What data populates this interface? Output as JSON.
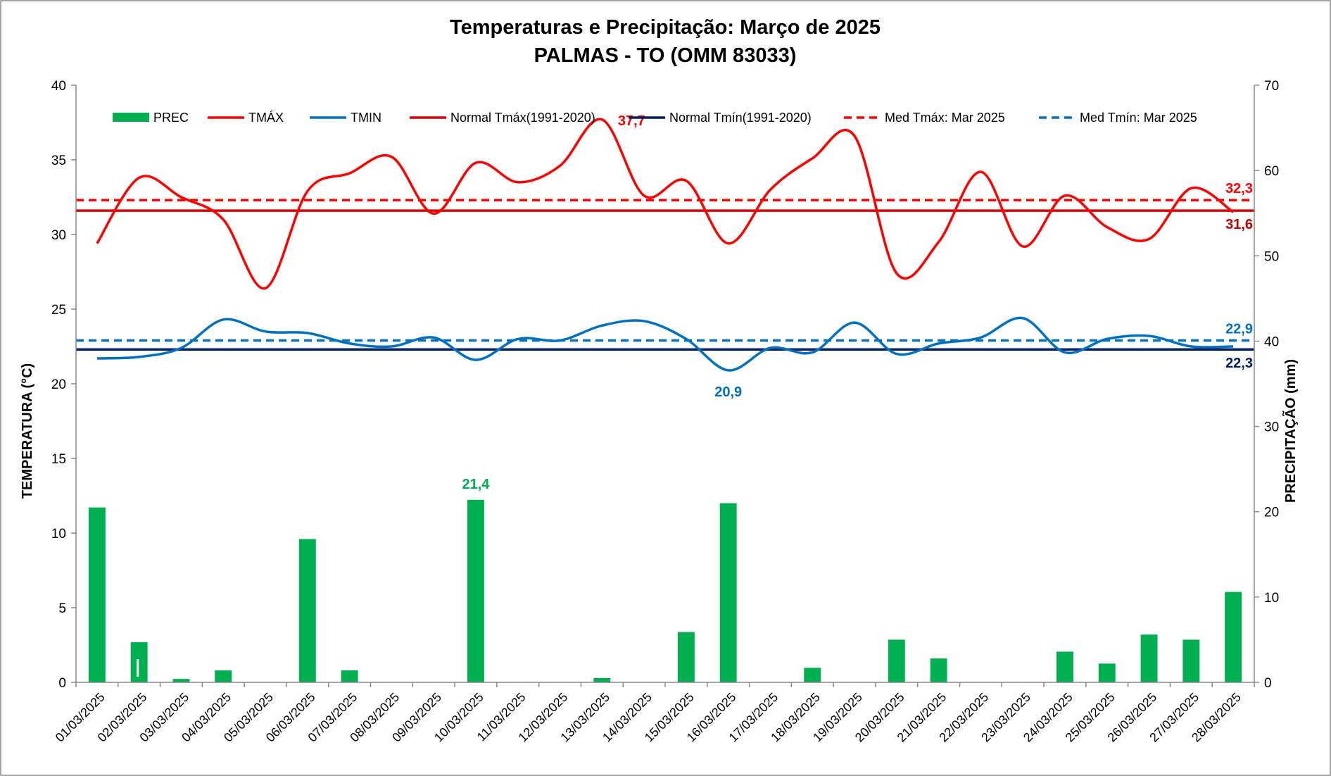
{
  "chart_data": {
    "type": "bar+line",
    "title": "Temperaturas e Precipitação: Março de 2025",
    "subtitle": "PALMAS - TO (OMM 83033)",
    "ylabel_left": "TEMPERATURA  (°C)",
    "ylabel_right": "PRECIPITAÇÃO  (mm)",
    "ylim_left": [
      0,
      40
    ],
    "ylim_right": [
      0,
      70
    ],
    "yticks_left": [
      "0",
      "5",
      "10",
      "15",
      "20",
      "25",
      "30",
      "35",
      "40"
    ],
    "yticks_right": [
      "0",
      "10",
      "20",
      "30",
      "40",
      "50",
      "60",
      "70"
    ],
    "categories": [
      "01/03/2025",
      "02/03/2025",
      "03/03/2025",
      "04/03/2025",
      "05/03/2025",
      "06/03/2025",
      "07/03/2025",
      "08/03/2025",
      "09/03/2025",
      "10/03/2025",
      "11/03/2025",
      "12/03/2025",
      "13/03/2025",
      "14/03/2025",
      "15/03/2025",
      "16/03/2025",
      "17/03/2025",
      "18/03/2025",
      "19/03/2025",
      "20/03/2025",
      "21/03/2025",
      "22/03/2025",
      "23/03/2025",
      "24/03/2025",
      "25/03/2025",
      "26/03/2025",
      "27/03/2025",
      "28/03/2025"
    ],
    "series": [
      {
        "name": "PREC",
        "type": "bar",
        "axis": "right",
        "color": "#00b050",
        "values": [
          20.5,
          4.7,
          0.4,
          1.4,
          0,
          16.8,
          1.4,
          0,
          0,
          21.4,
          0,
          0,
          0.5,
          0,
          5.9,
          21.0,
          0,
          1.7,
          0,
          5.0,
          2.8,
          0,
          0,
          3.6,
          2.2,
          5.6,
          5.0,
          10.6
        ]
      },
      {
        "name": "TMÁX",
        "type": "line",
        "axis": "left",
        "color": "#ff0000",
        "values": [
          29.4,
          33.8,
          32.5,
          31.0,
          26.4,
          32.9,
          34.1,
          35.2,
          31.4,
          34.8,
          33.5,
          34.6,
          37.7,
          32.6,
          33.6,
          29.4,
          33.0,
          35.1,
          36.6,
          27.4,
          29.5,
          34.2,
          29.2,
          32.6,
          30.5,
          29.7,
          33.1,
          31.5
        ]
      },
      {
        "name": "TMIN",
        "type": "line",
        "axis": "left",
        "color": "#0070c0",
        "values": [
          21.7,
          21.8,
          22.4,
          24.3,
          23.5,
          23.4,
          22.7,
          22.5,
          23.1,
          21.6,
          23.0,
          22.9,
          23.9,
          24.2,
          23.0,
          20.9,
          22.4,
          22.1,
          24.1,
          22.0,
          22.7,
          23.1,
          24.4,
          22.1,
          23.0,
          23.2,
          22.5,
          22.5
        ]
      },
      {
        "name": "Normal Tmáx(1991-2020)",
        "type": "hline",
        "axis": "left",
        "color": "#e00000",
        "value": 31.6
      },
      {
        "name": "Normal Tmín(1991-2020)",
        "type": "hline",
        "axis": "left",
        "color": "#002060",
        "value": 22.3
      },
      {
        "name": "Med Tmáx: Mar 2025",
        "type": "hline-dashed",
        "axis": "left",
        "color": "#ff0000",
        "value": 32.3
      },
      {
        "name": "Med Tmín: Mar 2025",
        "type": "hline-dashed",
        "axis": "left",
        "color": "#0070c0",
        "value": 22.9
      }
    ],
    "annotations": [
      {
        "text": "37,7",
        "color": "#ff0000",
        "series": "TMÁX",
        "index": 12
      },
      {
        "text": "20,9",
        "color": "#0070c0",
        "series": "TMIN",
        "index": 15
      },
      {
        "text": "21,4",
        "color": "#00b050",
        "series": "PREC",
        "index": 9
      },
      {
        "text": "32,3",
        "color": "#ff0000",
        "series": "Med Tmáx: Mar 2025",
        "index": 27
      },
      {
        "text": "31,6",
        "color": "#c00000",
        "series": "Normal Tmáx(1991-2020)",
        "index": 27
      },
      {
        "text": "22,9",
        "color": "#0070c0",
        "series": "Med Tmín: Mar 2025",
        "index": 27
      },
      {
        "text": "22,3",
        "color": "#002060",
        "series": "Normal Tmín(1991-2020)",
        "index": 27
      }
    ],
    "legend": [
      "PREC",
      "TMÁX",
      "TMIN",
      "Normal Tmáx(1991-2020)",
      "Normal Tmín(1991-2020)",
      "Med Tmáx: Mar 2025",
      "Med Tmín: Mar 2025"
    ],
    "legend_position": "top"
  }
}
